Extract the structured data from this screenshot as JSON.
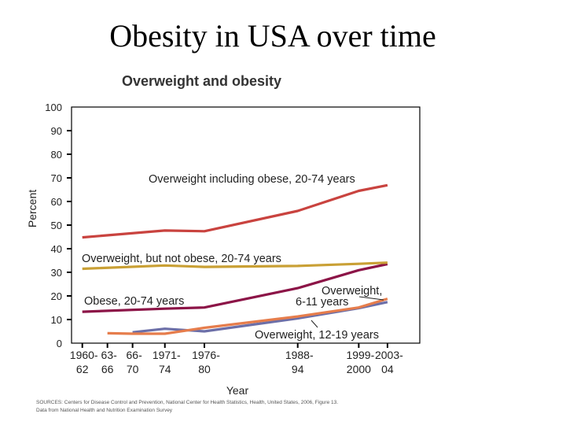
{
  "slide": {
    "title": "Obesity in USA over time"
  },
  "chart_data": {
    "type": "line",
    "title": "Overweight and obesity",
    "xlabel": "Year",
    "ylabel": "Percent",
    "ylim": [
      0,
      100
    ],
    "yticks": [
      0,
      10,
      20,
      30,
      40,
      50,
      60,
      70,
      80,
      90,
      100
    ],
    "grid": false,
    "x_categories": [
      {
        "label": [
          "1960-",
          "62"
        ],
        "mid": 1961
      },
      {
        "label": [
          "63-",
          "66"
        ],
        "mid": 1964.5
      },
      {
        "label": [
          "66-",
          "70"
        ],
        "mid": 1968
      },
      {
        "label": [
          "1971-",
          "74"
        ],
        "mid": 1972.5
      },
      {
        "label": [
          "1976-",
          "80"
        ],
        "mid": 1978
      },
      {
        "label": [
          "1988-",
          "94"
        ],
        "mid": 1991
      },
      {
        "label": [
          "1999-",
          "2000"
        ],
        "mid": 1999.5
      },
      {
        "label": [
          "2003-",
          "04"
        ],
        "mid": 2003.5
      }
    ],
    "series": [
      {
        "name": "Overweight including obese, 20-74 years",
        "color": "#c9433f",
        "values": [
          44.8,
          null,
          null,
          47.7,
          47.4,
          56.0,
          64.5,
          66.9
        ]
      },
      {
        "name": "Overweight, but not obese, 20-74 years",
        "color": "#c9a035",
        "values": [
          31.5,
          null,
          null,
          32.9,
          32.3,
          32.7,
          33.6,
          34.1
        ]
      },
      {
        "name": "Obese, 20-74 years",
        "color": "#8c1447",
        "values": [
          13.3,
          null,
          null,
          14.6,
          15.1,
          23.3,
          30.9,
          33.5
        ]
      },
      {
        "name": "Overweight, 6-11 years",
        "color": "#e67d4c",
        "values": [
          null,
          4.2,
          4.0,
          4.0,
          6.5,
          11.3,
          15.1,
          18.8
        ]
      },
      {
        "name": "Overweight, 12-19 years",
        "color": "#6c6fa8",
        "values": [
          null,
          null,
          4.6,
          6.1,
          5.0,
          10.5,
          14.8,
          17.4
        ]
      }
    ],
    "source": [
      "SOURCES: Centers for Disease Control and Prevention, National Center for Health Statistics, Health, United States, 2006, Figure 13.",
      "Data from National Health and Nutrition Examination Survey"
    ]
  }
}
